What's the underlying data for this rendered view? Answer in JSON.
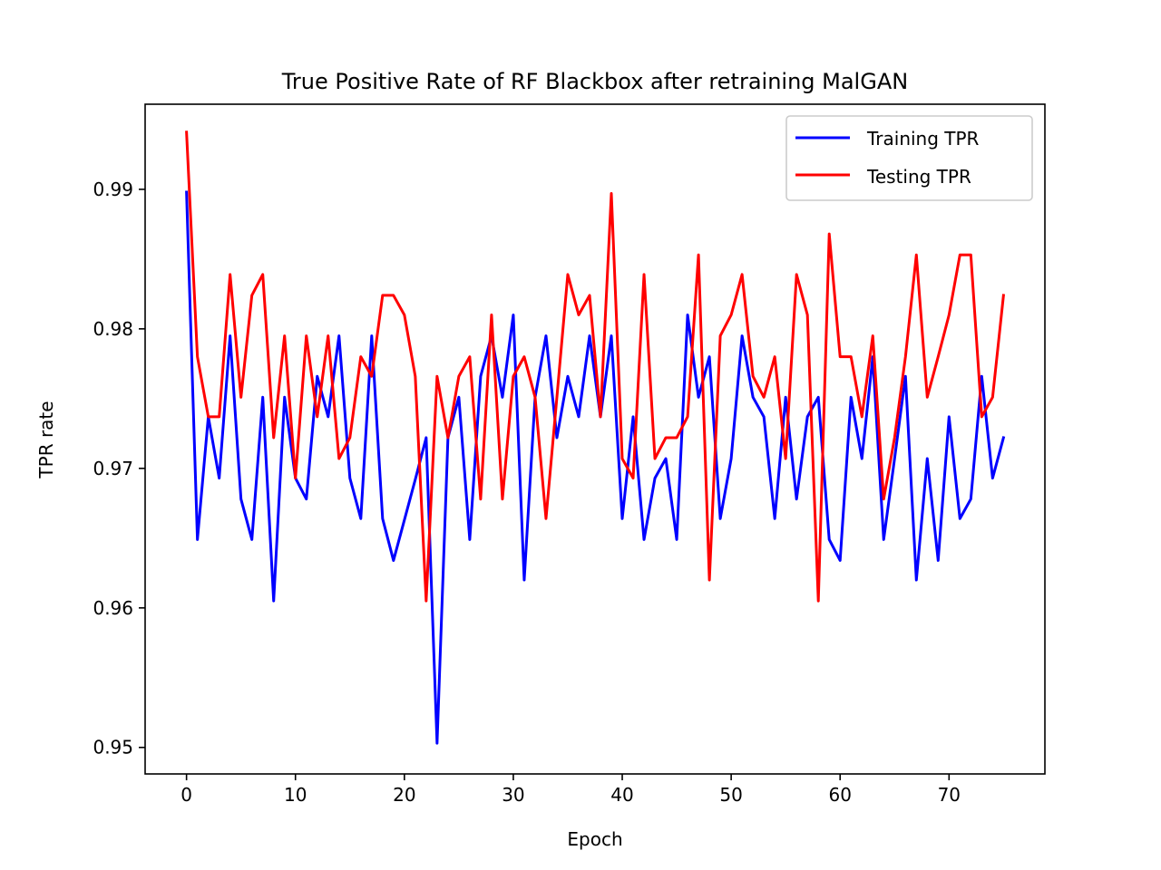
{
  "chart_data": {
    "type": "line",
    "title": "True Positive Rate of RF Blackbox after retraining MalGAN",
    "xlabel": "Epoch",
    "ylabel": "TPR rate",
    "xlim": [
      -3.8,
      78.8
    ],
    "ylim": [
      0.9481,
      0.9961
    ],
    "xticks": [
      0,
      10,
      20,
      30,
      40,
      50,
      60,
      70
    ],
    "yticks": [
      0.95,
      0.96,
      0.97,
      0.98,
      0.99
    ],
    "ytick_labels": [
      "0.95",
      "0.96",
      "0.97",
      "0.98",
      "0.99"
    ],
    "grid": false,
    "legend_position": "top-right",
    "series": [
      {
        "name": "Training TPR",
        "color": "#0000ff",
        "x": [
          0,
          1,
          2,
          3,
          4,
          5,
          6,
          7,
          8,
          9,
          10,
          11,
          12,
          13,
          14,
          15,
          16,
          17,
          18,
          19,
          20,
          21,
          22,
          23,
          24,
          25,
          26,
          27,
          28,
          29,
          30,
          31,
          32,
          33,
          34,
          35,
          36,
          37,
          38,
          39,
          40,
          41,
          42,
          43,
          44,
          45,
          46,
          47,
          48,
          49,
          50,
          51,
          52,
          53,
          54,
          55,
          56,
          57,
          58,
          59,
          60,
          61,
          62,
          63,
          64,
          65,
          66,
          67,
          68,
          69,
          70,
          71,
          72,
          73,
          74,
          75
        ],
        "values": [
          0.9898,
          0.9649,
          0.9737,
          0.9693,
          0.9795,
          0.9678,
          0.9649,
          0.9751,
          0.9605,
          0.9751,
          0.9693,
          0.9678,
          0.9766,
          0.9737,
          0.9795,
          0.9693,
          0.9664,
          0.9795,
          0.9664,
          0.9634,
          0.9663,
          0.9692,
          0.9722,
          0.9503,
          0.9722,
          0.9751,
          0.9649,
          0.9766,
          0.9795,
          0.9751,
          0.981,
          0.962,
          0.9751,
          0.9795,
          0.9722,
          0.9766,
          0.9737,
          0.9795,
          0.9737,
          0.9795,
          0.9664,
          0.9737,
          0.9649,
          0.9693,
          0.9707,
          0.9649,
          0.981,
          0.9751,
          0.978,
          0.9664,
          0.9707,
          0.9795,
          0.9751,
          0.9737,
          0.9664,
          0.9751,
          0.9678,
          0.9737,
          0.9751,
          0.9649,
          0.9634,
          0.9751,
          0.9707,
          0.978,
          0.9649,
          0.9707,
          0.9766,
          0.962,
          0.9707,
          0.9634,
          0.9737,
          0.9664,
          0.9678,
          0.9766,
          0.9693,
          0.9722
        ]
      },
      {
        "name": "Testing TPR",
        "color": "#ff0000",
        "x": [
          0,
          1,
          2,
          3,
          4,
          5,
          6,
          7,
          8,
          9,
          10,
          11,
          12,
          13,
          14,
          15,
          16,
          17,
          18,
          19,
          20,
          21,
          22,
          23,
          24,
          25,
          26,
          27,
          28,
          29,
          30,
          31,
          32,
          33,
          34,
          35,
          36,
          37,
          38,
          39,
          40,
          41,
          42,
          43,
          44,
          45,
          46,
          47,
          48,
          49,
          50,
          51,
          52,
          53,
          54,
          55,
          56,
          57,
          58,
          59,
          60,
          61,
          62,
          63,
          64,
          65,
          66,
          67,
          68,
          69,
          70,
          71,
          72,
          73,
          74,
          75
        ],
        "values": [
          0.9941,
          0.978,
          0.9737,
          0.9737,
          0.9839,
          0.9751,
          0.9824,
          0.9839,
          0.9722,
          0.9795,
          0.9693,
          0.9795,
          0.9737,
          0.9795,
          0.9707,
          0.9722,
          0.978,
          0.9766,
          0.9824,
          0.9824,
          0.981,
          0.9766,
          0.9605,
          0.9766,
          0.9722,
          0.9766,
          0.978,
          0.9678,
          0.981,
          0.9678,
          0.9766,
          0.978,
          0.9751,
          0.9664,
          0.9751,
          0.9839,
          0.981,
          0.9824,
          0.9737,
          0.9897,
          0.9707,
          0.9693,
          0.9839,
          0.9707,
          0.9722,
          0.9722,
          0.9737,
          0.9853,
          0.962,
          0.9795,
          0.981,
          0.9839,
          0.9766,
          0.9751,
          0.978,
          0.9707,
          0.9839,
          0.981,
          0.9605,
          0.9868,
          0.978,
          0.978,
          0.9737,
          0.9795,
          0.9678,
          0.9722,
          0.978,
          0.9853,
          0.9751,
          0.978,
          0.981,
          0.9853,
          0.9853,
          0.9737,
          0.9751,
          0.9824
        ]
      }
    ]
  }
}
